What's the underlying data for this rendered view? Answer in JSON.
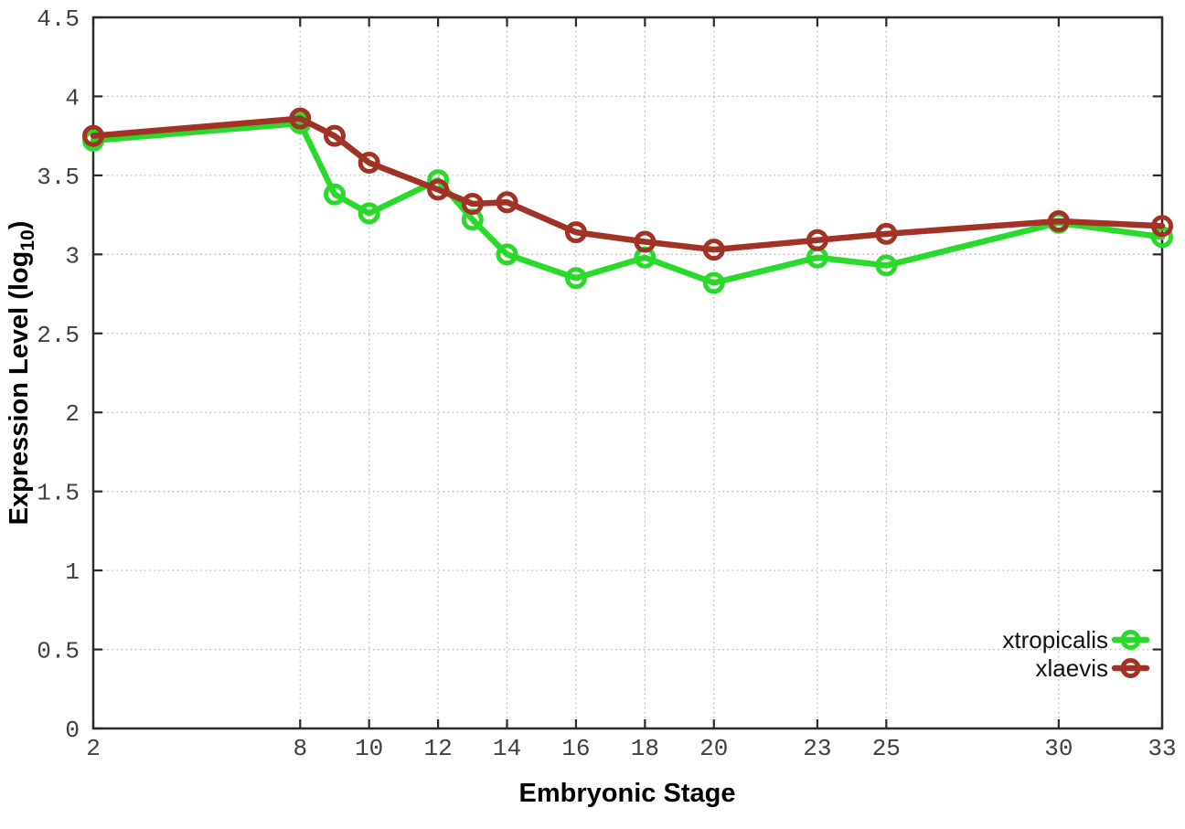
{
  "figure": {
    "background": "#ffffff"
  },
  "chart_data": {
    "type": "line",
    "title": "",
    "xlabel": "Embryonic Stage",
    "ylabel": "Expression Level (log10)",
    "ylabel_parts": {
      "main": "Expression Level (log",
      "sub": "10",
      "close": ")"
    },
    "x": [
      2,
      8,
      9,
      10,
      12,
      13,
      14,
      16,
      18,
      20,
      23,
      25,
      30,
      33
    ],
    "series": [
      {
        "name": "xtropicalis",
        "color": "#2ada2a",
        "values": [
          3.72,
          3.83,
          3.38,
          3.26,
          3.47,
          3.22,
          3.0,
          2.85,
          2.98,
          2.82,
          2.98,
          2.93,
          3.2,
          3.11
        ]
      },
      {
        "name": "xlaevis",
        "color": "#a23226",
        "values": [
          3.75,
          3.86,
          3.75,
          3.58,
          3.41,
          3.32,
          3.33,
          3.14,
          3.08,
          3.03,
          3.09,
          3.13,
          3.21,
          3.18
        ]
      }
    ],
    "xlim": [
      2,
      33
    ],
    "ylim": [
      0,
      4.5
    ],
    "x_ticks": [
      2,
      8,
      10,
      12,
      14,
      16,
      18,
      20,
      23,
      25,
      30,
      33
    ],
    "x_tick_labels": [
      "2",
      "8",
      "10",
      "12",
      "14",
      "16",
      "18",
      "20",
      "23",
      "25",
      "30",
      "33"
    ],
    "y_ticks": [
      0,
      0.5,
      1,
      1.5,
      2,
      2.5,
      3,
      3.5,
      4,
      4.5
    ],
    "y_tick_labels": [
      "0",
      "0.5",
      "1",
      "1.5",
      "2",
      "2.5",
      "3",
      "3.5",
      "4",
      "4.5"
    ],
    "grid": true,
    "grid_style": "dotted",
    "marker": "open-circle",
    "legend_position": "bottom-right",
    "style": {
      "grid_color": "#b5b5b5",
      "border_color": "#2b2b2b",
      "tick_text_color": "#404040",
      "title_text_color": "#000000",
      "background": "#ffffff"
    }
  }
}
